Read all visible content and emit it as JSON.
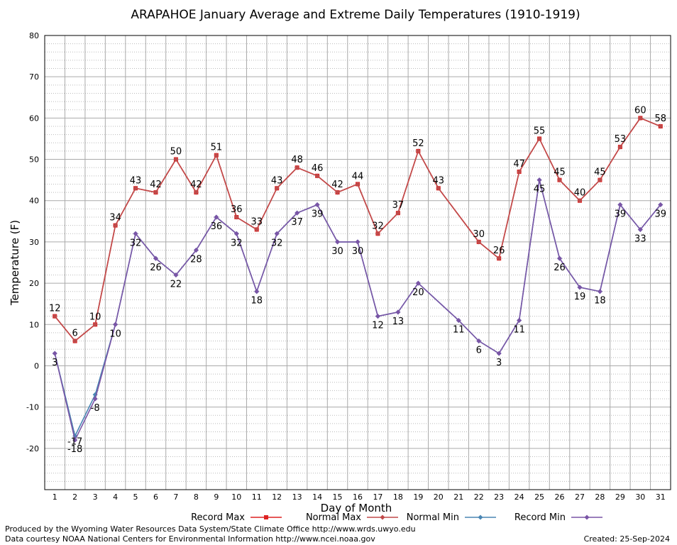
{
  "chart_data": {
    "type": "line",
    "title": "ARAPAHOE January Average and Extreme Daily Temperatures (1910-1919)",
    "xlabel": "Day of Month",
    "ylabel": "Temperature (F)",
    "ylim": [
      -30,
      80
    ],
    "yticks": [
      -20,
      -10,
      0,
      10,
      20,
      30,
      40,
      50,
      60,
      70,
      80
    ],
    "x": [
      1,
      2,
      3,
      4,
      5,
      6,
      7,
      8,
      9,
      10,
      11,
      12,
      13,
      14,
      15,
      16,
      17,
      18,
      19,
      20,
      21,
      22,
      23,
      24,
      25,
      26,
      27,
      28,
      29,
      30,
      31
    ],
    "grid": true,
    "series": [
      {
        "name": "Record Max",
        "color": "#dd2222",
        "marker": "square",
        "x": [
          1,
          2,
          3,
          4,
          5,
          6,
          7,
          8,
          9,
          10,
          11,
          12,
          13,
          14,
          15,
          16,
          17,
          18,
          19,
          20,
          22,
          23,
          24,
          25,
          26,
          27,
          28,
          29,
          30,
          31
        ],
        "values": [
          12,
          6,
          10,
          34,
          43,
          42,
          50,
          42,
          51,
          36,
          33,
          43,
          48,
          46,
          42,
          44,
          32,
          37,
          52,
          43,
          30,
          26,
          47,
          55,
          45,
          40,
          45,
          53,
          60,
          58
        ],
        "labels": true
      },
      {
        "name": "Normal Max",
        "color": "#c04a4a",
        "marker": "diamond",
        "x": [
          1,
          2,
          3,
          4,
          5,
          6,
          7,
          8,
          9,
          10,
          11,
          12,
          13,
          14,
          15,
          16,
          17,
          18,
          19,
          20,
          22,
          23,
          24,
          25,
          26,
          27,
          28,
          29,
          30,
          31
        ],
        "values": [
          12,
          6,
          10,
          34,
          43,
          42,
          50,
          42,
          51,
          36,
          33,
          43,
          48,
          46,
          42,
          44,
          32,
          37,
          52,
          43,
          30,
          26,
          47,
          55,
          45,
          40,
          45,
          53,
          60,
          58
        ],
        "labels": false
      },
      {
        "name": "Normal Min",
        "color": "#4a86b4",
        "marker": "diamond",
        "x": [
          1,
          2,
          3,
          4,
          5,
          6,
          7,
          8,
          9,
          10,
          11,
          12,
          13,
          14,
          15,
          16,
          17,
          18,
          19,
          20,
          21,
          22,
          23,
          24,
          25,
          26,
          27,
          28,
          29,
          30,
          31
        ],
        "values": [
          3,
          -17,
          -7,
          10,
          32,
          26,
          22,
          28,
          36,
          32,
          18,
          32,
          37,
          39,
          30,
          30,
          12,
          13,
          20,
          null,
          11,
          6,
          3,
          11,
          45,
          26,
          19,
          18,
          39,
          33,
          39
        ],
        "labels": false
      },
      {
        "name": "Record Min",
        "color": "#7a55a6",
        "marker": "diamond",
        "x": [
          1,
          2,
          3,
          4,
          5,
          6,
          7,
          8,
          9,
          10,
          11,
          12,
          13,
          14,
          15,
          16,
          17,
          18,
          19,
          21,
          22,
          23,
          24,
          25,
          26,
          27,
          28,
          29,
          30,
          31
        ],
        "values": [
          3,
          -18,
          -8,
          10,
          32,
          26,
          22,
          28,
          36,
          32,
          18,
          32,
          37,
          39,
          30,
          30,
          12,
          13,
          20,
          11,
          6,
          3,
          11,
          45,
          26,
          19,
          18,
          39,
          33,
          39
        ],
        "labels": true
      }
    ],
    "legend": {
      "placement": "bottom",
      "items": [
        "Record Max",
        "Normal Max",
        "Normal Min",
        "Record Min"
      ]
    },
    "annotations": {
      "normal_min_day2": "-17"
    }
  },
  "footer": {
    "produced_by": "Produced by the Wyoming Water Resources Data System/State Climate Office http://www.wrds.uwyo.edu",
    "data_courtesy": "Data courtesy NOAA National Centers for Environmental Information http://www.ncei.noaa.gov",
    "created": "Created:  25-Sep-2024"
  }
}
